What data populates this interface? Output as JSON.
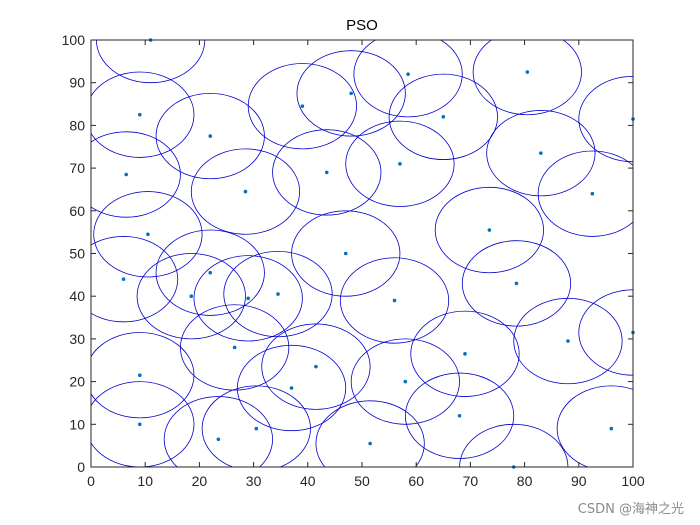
{
  "chart_data": {
    "type": "scatter",
    "title": "PSO",
    "xlabel": "",
    "ylabel": "",
    "xlim": [
      0,
      100
    ],
    "ylim": [
      0,
      100
    ],
    "x_ticks": [
      "0",
      "10",
      "20",
      "30",
      "40",
      "50",
      "60",
      "70",
      "80",
      "90",
      "100"
    ],
    "y_ticks": [
      "0",
      "10",
      "20",
      "30",
      "40",
      "50",
      "60",
      "70",
      "80",
      "90",
      "100"
    ],
    "grid": false,
    "circle_radius": 10,
    "point_color": "#0072BD",
    "circle_color": "#0000CC",
    "points": [
      {
        "x": 11.0,
        "y": 100.0
      },
      {
        "x": 58.5,
        "y": 92.0
      },
      {
        "x": 80.5,
        "y": 92.5
      },
      {
        "x": 48.0,
        "y": 87.5
      },
      {
        "x": 39.0,
        "y": 84.5
      },
      {
        "x": 9.0,
        "y": 82.5
      },
      {
        "x": 65.0,
        "y": 82.0
      },
      {
        "x": 100.0,
        "y": 81.5
      },
      {
        "x": 22.0,
        "y": 77.5
      },
      {
        "x": 83.0,
        "y": 73.5
      },
      {
        "x": 57.0,
        "y": 71.0
      },
      {
        "x": 43.5,
        "y": 69.0
      },
      {
        "x": 6.5,
        "y": 68.5
      },
      {
        "x": 28.5,
        "y": 64.5
      },
      {
        "x": 92.5,
        "y": 64.0
      },
      {
        "x": 73.5,
        "y": 55.5
      },
      {
        "x": 10.5,
        "y": 54.5
      },
      {
        "x": 47.0,
        "y": 50.0
      },
      {
        "x": 22.0,
        "y": 45.5
      },
      {
        "x": 6.0,
        "y": 44.0
      },
      {
        "x": 78.5,
        "y": 43.0
      },
      {
        "x": 34.5,
        "y": 40.5
      },
      {
        "x": 18.5,
        "y": 40.0
      },
      {
        "x": 29.0,
        "y": 39.5
      },
      {
        "x": 56.0,
        "y": 39.0
      },
      {
        "x": 100.0,
        "y": 31.5
      },
      {
        "x": 88.0,
        "y": 29.5
      },
      {
        "x": 26.5,
        "y": 28.0
      },
      {
        "x": 69.0,
        "y": 26.5
      },
      {
        "x": 41.5,
        "y": 23.5
      },
      {
        "x": 9.0,
        "y": 21.5
      },
      {
        "x": 58.0,
        "y": 20.0
      },
      {
        "x": 37.0,
        "y": 18.5
      },
      {
        "x": 68.0,
        "y": 12.0
      },
      {
        "x": 9.0,
        "y": 10.0
      },
      {
        "x": 30.5,
        "y": 9.0
      },
      {
        "x": 96.0,
        "y": 9.0
      },
      {
        "x": 23.5,
        "y": 6.5
      },
      {
        "x": 51.5,
        "y": 5.5
      },
      {
        "x": 78.0,
        "y": 0.0
      }
    ]
  },
  "watermark": "CSDN @海神之光"
}
